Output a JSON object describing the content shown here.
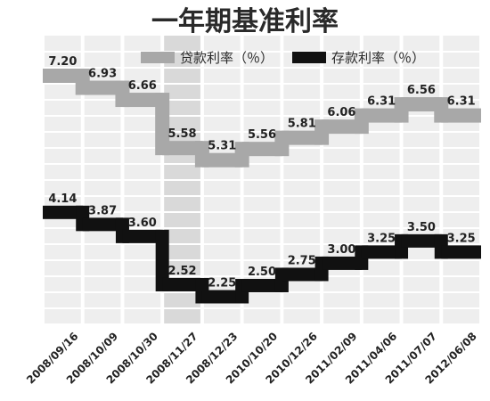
{
  "chart_data": {
    "type": "line",
    "step": true,
    "title": "一年期基准利率",
    "categories": [
      "2008/09/16",
      "2008/10/09",
      "2008/10/30",
      "2008/11/27",
      "2008/12/23",
      "2010/10/20",
      "2010/12/26",
      "2011/02/09",
      "2011/04/06",
      "2011/07/07",
      "2012/06/08"
    ],
    "series": [
      {
        "name": "贷款利率（％）",
        "color": "#a8a8a8",
        "values": [
          7.2,
          6.93,
          6.66,
          5.58,
          5.31,
          5.56,
          5.81,
          6.06,
          6.31,
          6.56,
          6.31
        ]
      },
      {
        "name": "存款利率（％）",
        "color": "#111111",
        "values": [
          4.14,
          3.87,
          3.6,
          2.52,
          2.25,
          2.5,
          2.75,
          3.0,
          3.25,
          3.5,
          3.25
        ]
      }
    ],
    "value_labels": {
      "loan": [
        "7.20",
        "6.93",
        "6.66",
        "5.58",
        "5.31",
        "5.56",
        "5.81",
        "6.06",
        "6.31",
        "6.56",
        "6.31"
      ],
      "deposit": [
        "4.14",
        "3.87",
        "3.60",
        "2.52",
        "2.25",
        "2.50",
        "2.75",
        "3.00",
        "3.25",
        "3.50",
        "3.25"
      ]
    },
    "grid": true,
    "legend_position": "top"
  }
}
